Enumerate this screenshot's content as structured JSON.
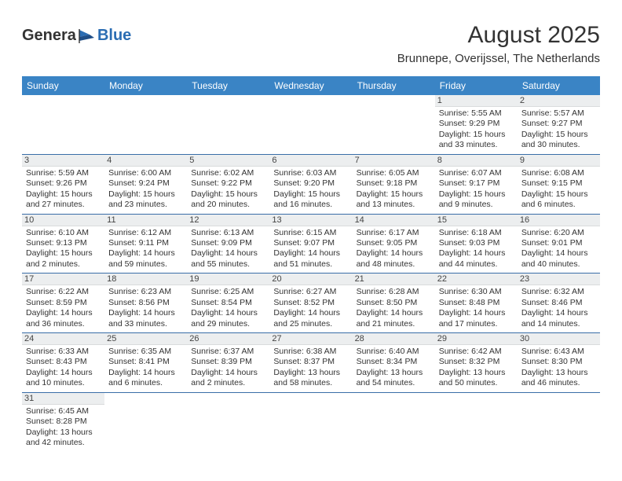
{
  "logo": {
    "text1": "Genera",
    "text2": "Blue"
  },
  "title": "August 2025",
  "location": "Brunnepe, Overijssel, The Netherlands",
  "colors": {
    "header_bg": "#3a84c5",
    "header_fg": "#ffffff",
    "rule": "#3a6ea8",
    "daybg": "#eceeef"
  },
  "day_headers": [
    "Sunday",
    "Monday",
    "Tuesday",
    "Wednesday",
    "Thursday",
    "Friday",
    "Saturday"
  ],
  "weeks": [
    [
      null,
      null,
      null,
      null,
      null,
      {
        "n": "1",
        "sr": "Sunrise: 5:55 AM",
        "ss": "Sunset: 9:29 PM",
        "d1": "Daylight: 15 hours",
        "d2": "and 33 minutes."
      },
      {
        "n": "2",
        "sr": "Sunrise: 5:57 AM",
        "ss": "Sunset: 9:27 PM",
        "d1": "Daylight: 15 hours",
        "d2": "and 30 minutes."
      }
    ],
    [
      {
        "n": "3",
        "sr": "Sunrise: 5:59 AM",
        "ss": "Sunset: 9:26 PM",
        "d1": "Daylight: 15 hours",
        "d2": "and 27 minutes."
      },
      {
        "n": "4",
        "sr": "Sunrise: 6:00 AM",
        "ss": "Sunset: 9:24 PM",
        "d1": "Daylight: 15 hours",
        "d2": "and 23 minutes."
      },
      {
        "n": "5",
        "sr": "Sunrise: 6:02 AM",
        "ss": "Sunset: 9:22 PM",
        "d1": "Daylight: 15 hours",
        "d2": "and 20 minutes."
      },
      {
        "n": "6",
        "sr": "Sunrise: 6:03 AM",
        "ss": "Sunset: 9:20 PM",
        "d1": "Daylight: 15 hours",
        "d2": "and 16 minutes."
      },
      {
        "n": "7",
        "sr": "Sunrise: 6:05 AM",
        "ss": "Sunset: 9:18 PM",
        "d1": "Daylight: 15 hours",
        "d2": "and 13 minutes."
      },
      {
        "n": "8",
        "sr": "Sunrise: 6:07 AM",
        "ss": "Sunset: 9:17 PM",
        "d1": "Daylight: 15 hours",
        "d2": "and 9 minutes."
      },
      {
        "n": "9",
        "sr": "Sunrise: 6:08 AM",
        "ss": "Sunset: 9:15 PM",
        "d1": "Daylight: 15 hours",
        "d2": "and 6 minutes."
      }
    ],
    [
      {
        "n": "10",
        "sr": "Sunrise: 6:10 AM",
        "ss": "Sunset: 9:13 PM",
        "d1": "Daylight: 15 hours",
        "d2": "and 2 minutes."
      },
      {
        "n": "11",
        "sr": "Sunrise: 6:12 AM",
        "ss": "Sunset: 9:11 PM",
        "d1": "Daylight: 14 hours",
        "d2": "and 59 minutes."
      },
      {
        "n": "12",
        "sr": "Sunrise: 6:13 AM",
        "ss": "Sunset: 9:09 PM",
        "d1": "Daylight: 14 hours",
        "d2": "and 55 minutes."
      },
      {
        "n": "13",
        "sr": "Sunrise: 6:15 AM",
        "ss": "Sunset: 9:07 PM",
        "d1": "Daylight: 14 hours",
        "d2": "and 51 minutes."
      },
      {
        "n": "14",
        "sr": "Sunrise: 6:17 AM",
        "ss": "Sunset: 9:05 PM",
        "d1": "Daylight: 14 hours",
        "d2": "and 48 minutes."
      },
      {
        "n": "15",
        "sr": "Sunrise: 6:18 AM",
        "ss": "Sunset: 9:03 PM",
        "d1": "Daylight: 14 hours",
        "d2": "and 44 minutes."
      },
      {
        "n": "16",
        "sr": "Sunrise: 6:20 AM",
        "ss": "Sunset: 9:01 PM",
        "d1": "Daylight: 14 hours",
        "d2": "and 40 minutes."
      }
    ],
    [
      {
        "n": "17",
        "sr": "Sunrise: 6:22 AM",
        "ss": "Sunset: 8:59 PM",
        "d1": "Daylight: 14 hours",
        "d2": "and 36 minutes."
      },
      {
        "n": "18",
        "sr": "Sunrise: 6:23 AM",
        "ss": "Sunset: 8:56 PM",
        "d1": "Daylight: 14 hours",
        "d2": "and 33 minutes."
      },
      {
        "n": "19",
        "sr": "Sunrise: 6:25 AM",
        "ss": "Sunset: 8:54 PM",
        "d1": "Daylight: 14 hours",
        "d2": "and 29 minutes."
      },
      {
        "n": "20",
        "sr": "Sunrise: 6:27 AM",
        "ss": "Sunset: 8:52 PM",
        "d1": "Daylight: 14 hours",
        "d2": "and 25 minutes."
      },
      {
        "n": "21",
        "sr": "Sunrise: 6:28 AM",
        "ss": "Sunset: 8:50 PM",
        "d1": "Daylight: 14 hours",
        "d2": "and 21 minutes."
      },
      {
        "n": "22",
        "sr": "Sunrise: 6:30 AM",
        "ss": "Sunset: 8:48 PM",
        "d1": "Daylight: 14 hours",
        "d2": "and 17 minutes."
      },
      {
        "n": "23",
        "sr": "Sunrise: 6:32 AM",
        "ss": "Sunset: 8:46 PM",
        "d1": "Daylight: 14 hours",
        "d2": "and 14 minutes."
      }
    ],
    [
      {
        "n": "24",
        "sr": "Sunrise: 6:33 AM",
        "ss": "Sunset: 8:43 PM",
        "d1": "Daylight: 14 hours",
        "d2": "and 10 minutes."
      },
      {
        "n": "25",
        "sr": "Sunrise: 6:35 AM",
        "ss": "Sunset: 8:41 PM",
        "d1": "Daylight: 14 hours",
        "d2": "and 6 minutes."
      },
      {
        "n": "26",
        "sr": "Sunrise: 6:37 AM",
        "ss": "Sunset: 8:39 PM",
        "d1": "Daylight: 14 hours",
        "d2": "and 2 minutes."
      },
      {
        "n": "27",
        "sr": "Sunrise: 6:38 AM",
        "ss": "Sunset: 8:37 PM",
        "d1": "Daylight: 13 hours",
        "d2": "and 58 minutes."
      },
      {
        "n": "28",
        "sr": "Sunrise: 6:40 AM",
        "ss": "Sunset: 8:34 PM",
        "d1": "Daylight: 13 hours",
        "d2": "and 54 minutes."
      },
      {
        "n": "29",
        "sr": "Sunrise: 6:42 AM",
        "ss": "Sunset: 8:32 PM",
        "d1": "Daylight: 13 hours",
        "d2": "and 50 minutes."
      },
      {
        "n": "30",
        "sr": "Sunrise: 6:43 AM",
        "ss": "Sunset: 8:30 PM",
        "d1": "Daylight: 13 hours",
        "d2": "and 46 minutes."
      }
    ],
    [
      {
        "n": "31",
        "sr": "Sunrise: 6:45 AM",
        "ss": "Sunset: 8:28 PM",
        "d1": "Daylight: 13 hours",
        "d2": "and 42 minutes."
      },
      null,
      null,
      null,
      null,
      null,
      null
    ]
  ]
}
